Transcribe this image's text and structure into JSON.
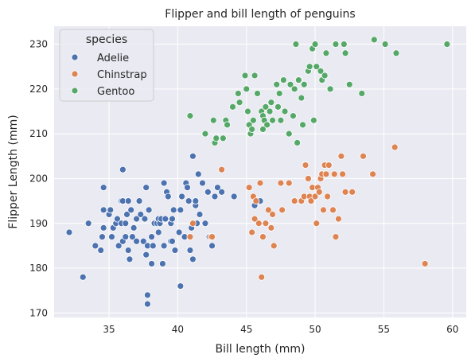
{
  "chart_data": {
    "type": "scatter",
    "title": "Flipper and bill length of penguins",
    "xlabel": "Bill length (mm)",
    "ylabel": "Flipper Length (mm)",
    "xlim": [
      31,
      61
    ],
    "ylim": [
      169,
      234
    ],
    "xticks": [
      35,
      40,
      45,
      50,
      55,
      60
    ],
    "yticks": [
      170,
      180,
      190,
      200,
      210,
      220,
      230
    ],
    "grid": true,
    "legend": {
      "title": "species",
      "placement": "top-left"
    },
    "colors": {
      "background": "#eaeaf2",
      "grid": "#ffffff",
      "Adelie": "#4c72b0",
      "Chinstrap": "#dd8452",
      "Gentoo": "#55a868"
    },
    "series": [
      {
        "name": "Adelie",
        "points": [
          [
            32.1,
            188
          ],
          [
            33.1,
            178
          ],
          [
            33.5,
            190
          ],
          [
            34.0,
            185
          ],
          [
            34.4,
            184
          ],
          [
            34.5,
            187
          ],
          [
            34.6,
            193
          ],
          [
            34.6,
            189
          ],
          [
            35.0,
            192
          ],
          [
            35.1,
            193
          ],
          [
            35.2,
            187
          ],
          [
            35.3,
            189
          ],
          [
            35.5,
            190
          ],
          [
            35.6,
            191
          ],
          [
            35.7,
            185
          ],
          [
            35.9,
            190
          ],
          [
            35.9,
            195
          ],
          [
            36.0,
            186
          ],
          [
            36.0,
            195
          ],
          [
            36.2,
            187
          ],
          [
            36.2,
            190
          ],
          [
            36.3,
            192
          ],
          [
            36.4,
            184
          ],
          [
            36.5,
            182
          ],
          [
            36.6,
            193
          ],
          [
            36.7,
            187
          ],
          [
            36.8,
            189
          ],
          [
            37.0,
            186
          ],
          [
            37.0,
            191
          ],
          [
            37.2,
            195
          ],
          [
            37.3,
            192
          ],
          [
            37.5,
            186
          ],
          [
            37.6,
            191
          ],
          [
            37.7,
            183
          ],
          [
            37.8,
            185
          ],
          [
            37.8,
            172
          ],
          [
            37.8,
            174
          ],
          [
            37.9,
            193
          ],
          [
            38.1,
            187
          ],
          [
            38.1,
            181
          ],
          [
            38.2,
            185
          ],
          [
            38.3,
            190
          ],
          [
            38.5,
            190
          ],
          [
            38.6,
            191
          ],
          [
            38.6,
            188
          ],
          [
            38.7,
            190
          ],
          [
            38.8,
            191
          ],
          [
            38.9,
            181
          ],
          [
            39.0,
            185
          ],
          [
            39.1,
            191
          ],
          [
            39.2,
            197
          ],
          [
            39.3,
            196
          ],
          [
            39.5,
            190
          ],
          [
            39.5,
            186
          ],
          [
            39.6,
            186
          ],
          [
            39.6,
            191
          ],
          [
            39.7,
            193
          ],
          [
            39.8,
            184
          ],
          [
            40.1,
            188
          ],
          [
            40.2,
            176
          ],
          [
            40.3,
            196
          ],
          [
            40.5,
            187
          ],
          [
            40.6,
            199
          ],
          [
            40.8,
            195
          ],
          [
            40.9,
            184
          ],
          [
            41.0,
            189
          ],
          [
            41.1,
            182
          ],
          [
            41.1,
            205
          ],
          [
            41.3,
            194
          ],
          [
            41.4,
            190
          ],
          [
            41.5,
            201
          ],
          [
            41.6,
            192
          ],
          [
            41.8,
            199
          ],
          [
            42.0,
            190
          ],
          [
            42.2,
            197
          ],
          [
            42.3,
            187
          ],
          [
            42.5,
            185
          ],
          [
            42.7,
            196
          ],
          [
            42.9,
            198
          ],
          [
            43.2,
            197
          ],
          [
            44.1,
            196
          ],
          [
            45.6,
            194
          ],
          [
            46.0,
            195
          ],
          [
            36.0,
            202
          ],
          [
            34.6,
            198
          ],
          [
            36.4,
            195
          ],
          [
            37.7,
            198
          ],
          [
            39.0,
            199
          ],
          [
            40.2,
            193
          ],
          [
            40.7,
            198
          ],
          [
            41.3,
            195
          ]
        ]
      },
      {
        "name": "Chinstrap",
        "points": [
          [
            40.9,
            187
          ],
          [
            41.1,
            190
          ],
          [
            42.4,
            187
          ],
          [
            42.5,
            187
          ],
          [
            43.2,
            202
          ],
          [
            45.2,
            198
          ],
          [
            45.4,
            188
          ],
          [
            45.5,
            196
          ],
          [
            45.6,
            191
          ],
          [
            45.7,
            195
          ],
          [
            45.9,
            190
          ],
          [
            46.0,
            199
          ],
          [
            46.1,
            178
          ],
          [
            46.2,
            187
          ],
          [
            46.4,
            190
          ],
          [
            46.6,
            193
          ],
          [
            46.8,
            189
          ],
          [
            46.9,
            192
          ],
          [
            47.0,
            185
          ],
          [
            47.5,
            199
          ],
          [
            47.6,
            193
          ],
          [
            48.1,
            199
          ],
          [
            48.5,
            195
          ],
          [
            49.0,
            195
          ],
          [
            49.2,
            196
          ],
          [
            49.3,
            203
          ],
          [
            49.5,
            200
          ],
          [
            49.6,
            196
          ],
          [
            49.7,
            195
          ],
          [
            49.8,
            198
          ],
          [
            50.0,
            196
          ],
          [
            50.1,
            190
          ],
          [
            50.2,
            198
          ],
          [
            50.3,
            197
          ],
          [
            50.4,
            200
          ],
          [
            50.5,
            201
          ],
          [
            50.6,
            193
          ],
          [
            50.7,
            203
          ],
          [
            50.8,
            201
          ],
          [
            50.9,
            196
          ],
          [
            51.0,
            203
          ],
          [
            51.3,
            193
          ],
          [
            51.4,
            201
          ],
          [
            51.5,
            187
          ],
          [
            51.7,
            191
          ],
          [
            51.9,
            205
          ],
          [
            52.0,
            201
          ],
          [
            52.2,
            197
          ],
          [
            52.7,
            197
          ],
          [
            53.5,
            205
          ],
          [
            54.2,
            201
          ],
          [
            55.8,
            207
          ],
          [
            58.0,
            181
          ]
        ]
      },
      {
        "name": "Gentoo",
        "points": [
          [
            40.9,
            214
          ],
          [
            42.0,
            210
          ],
          [
            42.7,
            208
          ],
          [
            42.8,
            209
          ],
          [
            43.3,
            209
          ],
          [
            43.5,
            213
          ],
          [
            44.0,
            216
          ],
          [
            44.4,
            219
          ],
          [
            44.5,
            217
          ],
          [
            45.0,
            220
          ],
          [
            45.1,
            215
          ],
          [
            45.2,
            212
          ],
          [
            45.3,
            210
          ],
          [
            45.4,
            211
          ],
          [
            45.5,
            213
          ],
          [
            45.8,
            219
          ],
          [
            46.1,
            215
          ],
          [
            46.2,
            214
          ],
          [
            46.3,
            213
          ],
          [
            46.4,
            216
          ],
          [
            46.5,
            212
          ],
          [
            46.7,
            215
          ],
          [
            46.8,
            217
          ],
          [
            46.9,
            213
          ],
          [
            47.2,
            221
          ],
          [
            47.3,
            216
          ],
          [
            47.4,
            219
          ],
          [
            47.5,
            213
          ],
          [
            47.7,
            222
          ],
          [
            47.8,
            215
          ],
          [
            48.1,
            210
          ],
          [
            48.2,
            221
          ],
          [
            48.4,
            214
          ],
          [
            48.5,
            220
          ],
          [
            48.6,
            230
          ],
          [
            48.7,
            208
          ],
          [
            48.8,
            222
          ],
          [
            49.0,
            218
          ],
          [
            49.1,
            212
          ],
          [
            49.2,
            221
          ],
          [
            49.5,
            224
          ],
          [
            49.6,
            225
          ],
          [
            49.8,
            229
          ],
          [
            49.9,
            213
          ],
          [
            50.0,
            230
          ],
          [
            50.1,
            225
          ],
          [
            50.4,
            224
          ],
          [
            50.5,
            222
          ],
          [
            50.7,
            223
          ],
          [
            50.8,
            228
          ],
          [
            51.1,
            220
          ],
          [
            51.5,
            230
          ],
          [
            52.1,
            230
          ],
          [
            52.2,
            228
          ],
          [
            52.5,
            221
          ],
          [
            53.4,
            219
          ],
          [
            54.3,
            231
          ],
          [
            55.1,
            230
          ],
          [
            55.9,
            228
          ],
          [
            59.6,
            230
          ],
          [
            44.9,
            223
          ],
          [
            45.6,
            223
          ],
          [
            46.2,
            211
          ],
          [
            43.6,
            212
          ],
          [
            42.6,
            213
          ]
        ]
      }
    ]
  }
}
